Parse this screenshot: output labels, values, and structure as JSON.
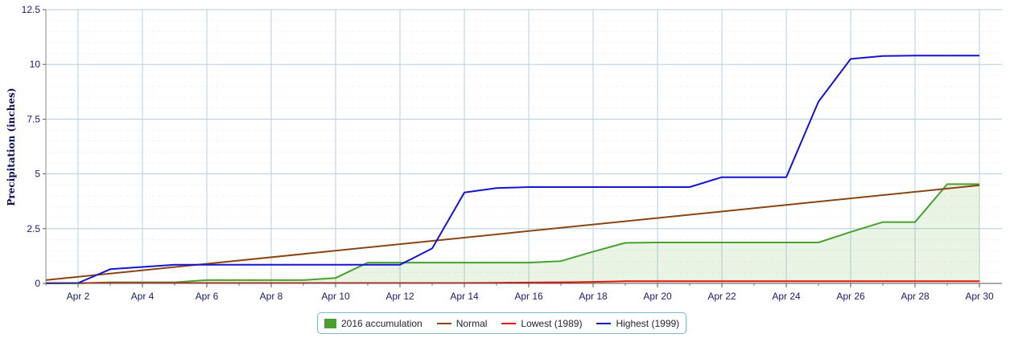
{
  "colors": {
    "accumulation_line": "#46a12d",
    "accumulation_fill": "#46a12d",
    "normal": "#8b4513",
    "lowest": "#e8150b",
    "highest": "#1414d2",
    "grid": "#b5cfe0",
    "axis_text": "#1b1b6b"
  },
  "chart_data": {
    "type": "line",
    "title": "",
    "xlabel": "",
    "ylabel": "Precipitation (inches)",
    "x_ticks": [
      "Apr 2",
      "Apr 4",
      "Apr 6",
      "Apr 8",
      "Apr 10",
      "Apr 12",
      "Apr 14",
      "Apr 16",
      "Apr 18",
      "Apr 20",
      "Apr 22",
      "Apr 24",
      "Apr 26",
      "Apr 28",
      "Apr 30"
    ],
    "y_ticks": [
      "0",
      "2.5",
      "5",
      "7.5",
      "10",
      "12.5"
    ],
    "ylim": [
      0,
      12.5
    ],
    "grid": true,
    "legend_position": "bottom-center",
    "series": [
      {
        "name": "2016 accumulation",
        "style": "area",
        "x": [
          "Apr 1",
          "Apr 2",
          "Apr 3",
          "Apr 4",
          "Apr 5",
          "Apr 6",
          "Apr 7",
          "Apr 8",
          "Apr 9",
          "Apr 10",
          "Apr 11",
          "Apr 12",
          "Apr 13",
          "Apr 14",
          "Apr 15",
          "Apr 16",
          "Apr 17",
          "Apr 18",
          "Apr 19",
          "Apr 20",
          "Apr 21",
          "Apr 22",
          "Apr 23",
          "Apr 24",
          "Apr 25",
          "Apr 26",
          "Apr 27",
          "Apr 28",
          "Apr 29",
          "Apr 30"
        ],
        "values": [
          0.0,
          0.0,
          0.05,
          0.05,
          0.05,
          0.15,
          0.15,
          0.15,
          0.15,
          0.25,
          0.95,
          0.95,
          0.95,
          0.95,
          0.95,
          0.95,
          1.02,
          1.45,
          1.85,
          1.87,
          1.87,
          1.87,
          1.87,
          1.87,
          1.87,
          2.35,
          2.8,
          2.8,
          4.53,
          4.53
        ]
      },
      {
        "name": "Normal",
        "style": "line",
        "x": [
          "Apr 1",
          "Apr 30"
        ],
        "values": [
          0.15,
          4.48
        ]
      },
      {
        "name": "Lowest (1989)",
        "style": "line",
        "x": [
          "Apr 1",
          "Apr 2",
          "Apr 3",
          "Apr 4",
          "Apr 5",
          "Apr 6",
          "Apr 7",
          "Apr 8",
          "Apr 9",
          "Apr 10",
          "Apr 11",
          "Apr 12",
          "Apr 13",
          "Apr 14",
          "Apr 15",
          "Apr 16",
          "Apr 17",
          "Apr 18",
          "Apr 19",
          "Apr 20",
          "Apr 21",
          "Apr 22",
          "Apr 23",
          "Apr 24",
          "Apr 25",
          "Apr 26",
          "Apr 27",
          "Apr 28",
          "Apr 29",
          "Apr 30"
        ],
        "values": [
          0.02,
          0.02,
          0.02,
          0.02,
          0.02,
          0.02,
          0.02,
          0.02,
          0.02,
          0.02,
          0.02,
          0.02,
          0.02,
          0.02,
          0.03,
          0.04,
          0.05,
          0.07,
          0.1,
          0.1,
          0.1,
          0.1,
          0.1,
          0.1,
          0.1,
          0.1,
          0.1,
          0.1,
          0.1,
          0.1
        ]
      },
      {
        "name": "Highest (1999)",
        "style": "line",
        "x": [
          "Apr 1",
          "Apr 2",
          "Apr 3",
          "Apr 4",
          "Apr 5",
          "Apr 6",
          "Apr 7",
          "Apr 8",
          "Apr 9",
          "Apr 10",
          "Apr 11",
          "Apr 12",
          "Apr 13",
          "Apr 14",
          "Apr 15",
          "Apr 16",
          "Apr 17",
          "Apr 18",
          "Apr 19",
          "Apr 20",
          "Apr 21",
          "Apr 22",
          "Apr 23",
          "Apr 24",
          "Apr 25",
          "Apr 26",
          "Apr 27",
          "Apr 28",
          "Apr 29",
          "Apr 30"
        ],
        "values": [
          0.0,
          0.02,
          0.65,
          0.75,
          0.85,
          0.85,
          0.85,
          0.85,
          0.85,
          0.85,
          0.85,
          0.85,
          1.6,
          4.15,
          4.35,
          4.4,
          4.4,
          4.4,
          4.4,
          4.4,
          4.4,
          4.85,
          4.85,
          4.85,
          8.3,
          10.25,
          10.38,
          10.4,
          10.4,
          10.4
        ]
      }
    ]
  }
}
